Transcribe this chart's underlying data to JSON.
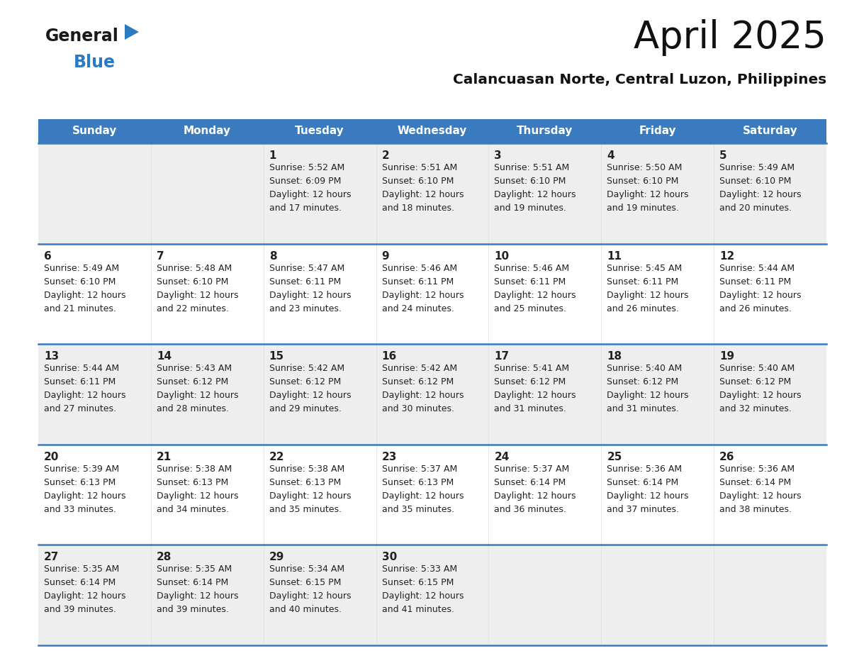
{
  "title": "April 2025",
  "subtitle": "Calancuasan Norte, Central Luzon, Philippines",
  "header_color": "#3a7bbf",
  "header_text_color": "#ffffff",
  "bg_color": "#ffffff",
  "cell_bg_light": "#eeeeee",
  "days_of_week": [
    "Sunday",
    "Monday",
    "Tuesday",
    "Wednesday",
    "Thursday",
    "Friday",
    "Saturday"
  ],
  "weeks": [
    [
      {
        "day": "",
        "sunrise": "",
        "sunset": "",
        "daylight": ""
      },
      {
        "day": "",
        "sunrise": "",
        "sunset": "",
        "daylight": ""
      },
      {
        "day": "1",
        "sunrise": "Sunrise: 5:52 AM",
        "sunset": "Sunset: 6:09 PM",
        "daylight": "Daylight: 12 hours\nand 17 minutes."
      },
      {
        "day": "2",
        "sunrise": "Sunrise: 5:51 AM",
        "sunset": "Sunset: 6:10 PM",
        "daylight": "Daylight: 12 hours\nand 18 minutes."
      },
      {
        "day": "3",
        "sunrise": "Sunrise: 5:51 AM",
        "sunset": "Sunset: 6:10 PM",
        "daylight": "Daylight: 12 hours\nand 19 minutes."
      },
      {
        "day": "4",
        "sunrise": "Sunrise: 5:50 AM",
        "sunset": "Sunset: 6:10 PM",
        "daylight": "Daylight: 12 hours\nand 19 minutes."
      },
      {
        "day": "5",
        "sunrise": "Sunrise: 5:49 AM",
        "sunset": "Sunset: 6:10 PM",
        "daylight": "Daylight: 12 hours\nand 20 minutes."
      }
    ],
    [
      {
        "day": "6",
        "sunrise": "Sunrise: 5:49 AM",
        "sunset": "Sunset: 6:10 PM",
        "daylight": "Daylight: 12 hours\nand 21 minutes."
      },
      {
        "day": "7",
        "sunrise": "Sunrise: 5:48 AM",
        "sunset": "Sunset: 6:10 PM",
        "daylight": "Daylight: 12 hours\nand 22 minutes."
      },
      {
        "day": "8",
        "sunrise": "Sunrise: 5:47 AM",
        "sunset": "Sunset: 6:11 PM",
        "daylight": "Daylight: 12 hours\nand 23 minutes."
      },
      {
        "day": "9",
        "sunrise": "Sunrise: 5:46 AM",
        "sunset": "Sunset: 6:11 PM",
        "daylight": "Daylight: 12 hours\nand 24 minutes."
      },
      {
        "day": "10",
        "sunrise": "Sunrise: 5:46 AM",
        "sunset": "Sunset: 6:11 PM",
        "daylight": "Daylight: 12 hours\nand 25 minutes."
      },
      {
        "day": "11",
        "sunrise": "Sunrise: 5:45 AM",
        "sunset": "Sunset: 6:11 PM",
        "daylight": "Daylight: 12 hours\nand 26 minutes."
      },
      {
        "day": "12",
        "sunrise": "Sunrise: 5:44 AM",
        "sunset": "Sunset: 6:11 PM",
        "daylight": "Daylight: 12 hours\nand 26 minutes."
      }
    ],
    [
      {
        "day": "13",
        "sunrise": "Sunrise: 5:44 AM",
        "sunset": "Sunset: 6:11 PM",
        "daylight": "Daylight: 12 hours\nand 27 minutes."
      },
      {
        "day": "14",
        "sunrise": "Sunrise: 5:43 AM",
        "sunset": "Sunset: 6:12 PM",
        "daylight": "Daylight: 12 hours\nand 28 minutes."
      },
      {
        "day": "15",
        "sunrise": "Sunrise: 5:42 AM",
        "sunset": "Sunset: 6:12 PM",
        "daylight": "Daylight: 12 hours\nand 29 minutes."
      },
      {
        "day": "16",
        "sunrise": "Sunrise: 5:42 AM",
        "sunset": "Sunset: 6:12 PM",
        "daylight": "Daylight: 12 hours\nand 30 minutes."
      },
      {
        "day": "17",
        "sunrise": "Sunrise: 5:41 AM",
        "sunset": "Sunset: 6:12 PM",
        "daylight": "Daylight: 12 hours\nand 31 minutes."
      },
      {
        "day": "18",
        "sunrise": "Sunrise: 5:40 AM",
        "sunset": "Sunset: 6:12 PM",
        "daylight": "Daylight: 12 hours\nand 31 minutes."
      },
      {
        "day": "19",
        "sunrise": "Sunrise: 5:40 AM",
        "sunset": "Sunset: 6:12 PM",
        "daylight": "Daylight: 12 hours\nand 32 minutes."
      }
    ],
    [
      {
        "day": "20",
        "sunrise": "Sunrise: 5:39 AM",
        "sunset": "Sunset: 6:13 PM",
        "daylight": "Daylight: 12 hours\nand 33 minutes."
      },
      {
        "day": "21",
        "sunrise": "Sunrise: 5:38 AM",
        "sunset": "Sunset: 6:13 PM",
        "daylight": "Daylight: 12 hours\nand 34 minutes."
      },
      {
        "day": "22",
        "sunrise": "Sunrise: 5:38 AM",
        "sunset": "Sunset: 6:13 PM",
        "daylight": "Daylight: 12 hours\nand 35 minutes."
      },
      {
        "day": "23",
        "sunrise": "Sunrise: 5:37 AM",
        "sunset": "Sunset: 6:13 PM",
        "daylight": "Daylight: 12 hours\nand 35 minutes."
      },
      {
        "day": "24",
        "sunrise": "Sunrise: 5:37 AM",
        "sunset": "Sunset: 6:14 PM",
        "daylight": "Daylight: 12 hours\nand 36 minutes."
      },
      {
        "day": "25",
        "sunrise": "Sunrise: 5:36 AM",
        "sunset": "Sunset: 6:14 PM",
        "daylight": "Daylight: 12 hours\nand 37 minutes."
      },
      {
        "day": "26",
        "sunrise": "Sunrise: 5:36 AM",
        "sunset": "Sunset: 6:14 PM",
        "daylight": "Daylight: 12 hours\nand 38 minutes."
      }
    ],
    [
      {
        "day": "27",
        "sunrise": "Sunrise: 5:35 AM",
        "sunset": "Sunset: 6:14 PM",
        "daylight": "Daylight: 12 hours\nand 39 minutes."
      },
      {
        "day": "28",
        "sunrise": "Sunrise: 5:35 AM",
        "sunset": "Sunset: 6:14 PM",
        "daylight": "Daylight: 12 hours\nand 39 minutes."
      },
      {
        "day": "29",
        "sunrise": "Sunrise: 5:34 AM",
        "sunset": "Sunset: 6:15 PM",
        "daylight": "Daylight: 12 hours\nand 40 minutes."
      },
      {
        "day": "30",
        "sunrise": "Sunrise: 5:33 AM",
        "sunset": "Sunset: 6:15 PM",
        "daylight": "Daylight: 12 hours\nand 41 minutes."
      },
      {
        "day": "",
        "sunrise": "",
        "sunset": "",
        "daylight": ""
      },
      {
        "day": "",
        "sunrise": "",
        "sunset": "",
        "daylight": ""
      },
      {
        "day": "",
        "sunrise": "",
        "sunset": "",
        "daylight": ""
      }
    ]
  ],
  "logo_general_color": "#1a1a1a",
  "logo_blue_color": "#2a7bbf",
  "logo_triangle_color": "#2a7bbf"
}
